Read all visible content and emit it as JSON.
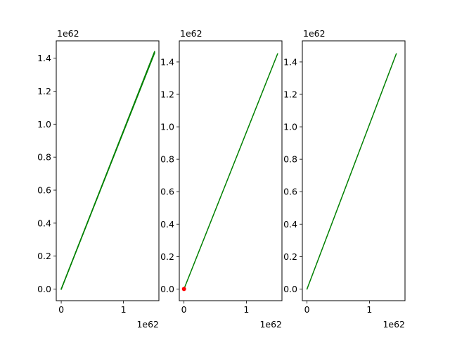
{
  "colors": {
    "line": "#008000",
    "marker": "#ff0000",
    "axes": "#000000",
    "background": "#ffffff"
  },
  "chart_data": [
    {
      "type": "line",
      "title": "",
      "xlabel": "",
      "ylabel": "",
      "x_offset_label": "1e62",
      "y_offset_label": "1e62",
      "xlim": [
        -0.08,
        1.57
      ],
      "ylim": [
        -0.07,
        1.505
      ],
      "x_ticks": [
        0,
        1
      ],
      "x_tick_labels": [
        "0",
        "1"
      ],
      "y_ticks": [
        0.0,
        0.2,
        0.4,
        0.6,
        0.8,
        1.0,
        1.2,
        1.4
      ],
      "y_tick_labels": [
        "0.0",
        "0.2",
        "0.4",
        "0.6",
        "0.8",
        "1.0",
        "1.2",
        "1.4"
      ],
      "grid": false,
      "series": [
        {
          "x": [
            0,
            1.5
          ],
          "y": [
            0,
            1.435
          ],
          "style": "line",
          "color": "#008000",
          "width": 1.5
        },
        {
          "x": [
            0,
            1.5
          ],
          "y": [
            0,
            1.44
          ],
          "style": "line",
          "color": "#008000",
          "width": 1.5
        },
        {
          "x": [
            0,
            1.5
          ],
          "y": [
            0,
            1.43
          ],
          "style": "line",
          "color": "#008000",
          "width": 1.5
        }
      ]
    },
    {
      "type": "line",
      "title": "",
      "xlabel": "",
      "ylabel": "",
      "x_offset_label": "1e62",
      "y_offset_label": "1e62",
      "xlim": [
        -0.075,
        1.57
      ],
      "ylim": [
        -0.072,
        1.53
      ],
      "x_ticks": [
        0,
        1
      ],
      "x_tick_labels": [
        "0",
        "1"
      ],
      "y_ticks": [
        0.0,
        0.2,
        0.4,
        0.6,
        0.8,
        1.0,
        1.2,
        1.4
      ],
      "y_tick_labels": [
        "0.0",
        "0.2",
        "0.4",
        "0.6",
        "0.8",
        "1.0",
        "1.2",
        "1.4"
      ],
      "grid": false,
      "series": [
        {
          "x": [
            0,
            1.5
          ],
          "y": [
            0,
            1.45
          ],
          "style": "line",
          "color": "#008000",
          "width": 1.5
        },
        {
          "x": [
            0
          ],
          "y": [
            0
          ],
          "style": "marker",
          "color": "#ff0000",
          "size": 3
        }
      ]
    },
    {
      "type": "line",
      "title": "",
      "xlabel": "",
      "ylabel": "",
      "x_offset_label": "1e62",
      "y_offset_label": "1e62",
      "xlim": [
        -0.075,
        1.57
      ],
      "ylim": [
        -0.072,
        1.53
      ],
      "x_ticks": [
        0,
        1
      ],
      "x_tick_labels": [
        "0",
        "1"
      ],
      "y_ticks": [
        0.0,
        0.2,
        0.4,
        0.6,
        0.8,
        1.0,
        1.2,
        1.4
      ],
      "y_tick_labels": [
        "0.0",
        "0.2",
        "0.4",
        "0.6",
        "0.8",
        "1.0",
        "1.2",
        "1.4"
      ],
      "grid": false,
      "series": [
        {
          "x": [
            0,
            1.43
          ],
          "y": [
            0,
            1.45
          ],
          "style": "line",
          "color": "#008000",
          "width": 1.5
        }
      ]
    }
  ]
}
